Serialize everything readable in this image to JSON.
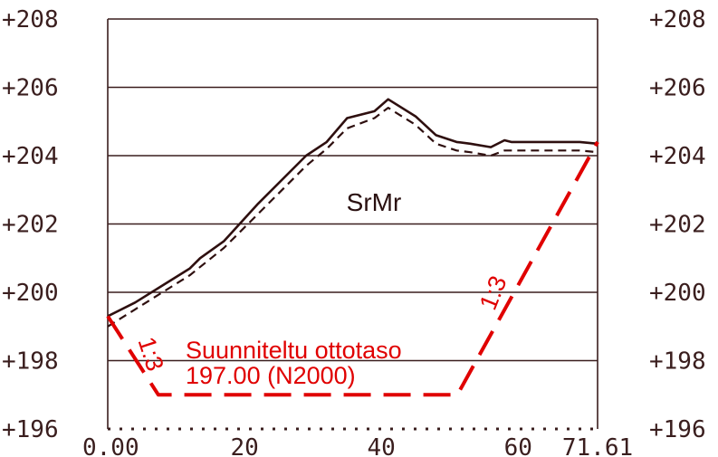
{
  "chart_data": {
    "type": "line",
    "x_range": [
      0,
      71.61
    ],
    "y_range": [
      196,
      208
    ],
    "y_ticks": [
      "+196",
      "+198",
      "+200",
      "+202",
      "+204",
      "+206",
      "+208"
    ],
    "x_ticks": [
      {
        "x": 0,
        "label": "0.00"
      },
      {
        "x": 20,
        "label": "20"
      },
      {
        "x": 40,
        "label": "40"
      },
      {
        "x": 60,
        "label": "60"
      },
      {
        "x": 71.61,
        "label": "71.61"
      }
    ],
    "grid": true,
    "series": [
      {
        "style": "solid",
        "color": "#2e0f0f",
        "x": [
          0,
          4,
          8,
          12,
          13.5,
          17,
          22,
          29,
          32,
          35,
          39,
          41,
          45,
          48,
          51,
          53,
          56,
          58,
          59,
          62,
          69,
          71.61
        ],
        "y": [
          199.3,
          199.7,
          200.2,
          200.7,
          201.0,
          201.5,
          202.6,
          204.0,
          204.4,
          205.1,
          205.3,
          205.65,
          205.15,
          204.6,
          204.4,
          204.35,
          204.25,
          204.45,
          204.4,
          204.4,
          204.4,
          204.35
        ]
      },
      {
        "style": "dashed",
        "color": "#2e0f0f",
        "x": [
          0,
          4,
          8,
          12,
          17,
          22,
          29,
          32,
          35,
          39,
          41,
          45,
          48,
          51,
          53,
          56,
          58,
          59,
          62,
          69,
          71.61
        ],
        "y": [
          199.0,
          199.5,
          200.0,
          200.5,
          201.3,
          202.3,
          203.7,
          204.2,
          204.8,
          205.1,
          205.4,
          204.9,
          204.35,
          204.15,
          204.1,
          204.0,
          204.15,
          204.15,
          204.15,
          204.15,
          204.1
        ]
      },
      {
        "style": "long-dash",
        "color": "#e00000",
        "x": [
          0,
          7.4,
          51.1,
          71.61
        ],
        "y": [
          199.3,
          197.0,
          197.0,
          204.4
        ]
      }
    ]
  },
  "annotations": {
    "soil_label": "SrMr",
    "plan_label": "Suunniteltu ottotaso",
    "plan_level": "197.00 (N2000)",
    "slope_left": "1:3",
    "slope_right": "1:3"
  },
  "colors": {
    "frame": "#3a1e1e",
    "grid": "#3a1e1e",
    "ground": "#2e0f0f",
    "design": "#e00000"
  }
}
